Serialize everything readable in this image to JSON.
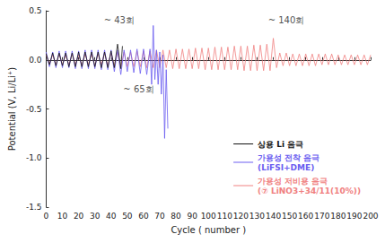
{
  "chart_data": {
    "type": "line",
    "xlabel": "Cycle ( number )",
    "ylabel": "Potential (V, Li/Li⁺)",
    "xlim": [
      0,
      200
    ],
    "xticks": [
      0,
      10,
      20,
      30,
      40,
      50,
      60,
      70,
      80,
      90,
      100,
      110,
      120,
      130,
      140,
      150,
      160,
      170,
      180,
      190,
      200
    ],
    "ylim": [
      -1.5,
      0.5
    ],
    "yticks": [
      -1.5,
      {
        "value": -1.0,
        "label": "-1.0"
      },
      -0.5,
      {
        "value": 0.0,
        "label": "0.0"
      },
      0.5
    ],
    "grid": false,
    "legend": "lower right",
    "annotations": [
      {
        "text": "~ 43회",
        "x": 45,
        "y": 0.4
      },
      {
        "text": "~ 65회",
        "x": 57,
        "y": -0.3
      },
      {
        "text": "~ 140회",
        "x": 148,
        "y": 0.4
      }
    ],
    "series": [
      {
        "name": "상용 Li 음극",
        "color": "#111111",
        "x": [
          0,
          2,
          4,
          6,
          8,
          10,
          12,
          14,
          16,
          18,
          20,
          22,
          24,
          26,
          28,
          30,
          32,
          34,
          36,
          38,
          40,
          42,
          44,
          46,
          47
        ],
        "values": [
          0.06,
          -0.05,
          0.07,
          -0.06,
          0.07,
          -0.06,
          0.07,
          -0.07,
          0.07,
          -0.07,
          0.08,
          -0.07,
          0.08,
          -0.07,
          0.08,
          -0.07,
          0.08,
          -0.08,
          0.08,
          -0.08,
          0.09,
          -0.08,
          0.16,
          -0.09,
          0.14
        ]
      },
      {
        "name": "가용성 전착 음극\n(LiFSI+DME)",
        "color": "#6a5cf0",
        "x": [
          0,
          2,
          4,
          6,
          8,
          10,
          12,
          14,
          16,
          18,
          20,
          22,
          24,
          26,
          28,
          30,
          32,
          34,
          36,
          38,
          40,
          42,
          44,
          46,
          48,
          50,
          52,
          54,
          56,
          58,
          60,
          62,
          64,
          65,
          66,
          67,
          68,
          69,
          70,
          71,
          72,
          73,
          74,
          75
        ],
        "values": [
          0.08,
          -0.07,
          0.08,
          -0.08,
          0.09,
          -0.08,
          0.09,
          -0.08,
          0.09,
          -0.09,
          0.09,
          -0.09,
          0.1,
          -0.09,
          0.1,
          -0.09,
          0.1,
          -0.1,
          0.1,
          -0.1,
          0.1,
          -0.12,
          0.1,
          -0.15,
          0.1,
          -0.12,
          0.1,
          -0.13,
          0.11,
          -0.14,
          0.11,
          -0.15,
          0.11,
          -0.25,
          0.35,
          -0.2,
          0.1,
          -0.25,
          0.08,
          -0.35,
          0.05,
          -0.8,
          -0.1,
          -0.7
        ]
      },
      {
        "name": "가용성 저비용 음극\n(⑦ LiNO3+34/11(10%))",
        "color": "#f08080",
        "x": [
          0,
          2,
          4,
          6,
          8,
          10,
          12,
          14,
          16,
          18,
          20,
          22,
          24,
          26,
          28,
          30,
          32,
          34,
          36,
          38,
          40,
          42,
          44,
          46,
          48,
          50,
          52,
          54,
          56,
          58,
          60,
          62,
          64,
          66,
          68,
          70,
          72,
          74,
          76,
          78,
          80,
          82,
          84,
          86,
          88,
          90,
          92,
          94,
          96,
          98,
          100,
          102,
          104,
          106,
          108,
          110,
          112,
          114,
          116,
          118,
          120,
          122,
          124,
          126,
          128,
          130,
          132,
          134,
          136,
          138,
          140,
          142,
          144,
          146,
          148,
          150,
          152,
          154,
          156,
          158,
          160,
          162,
          164,
          166,
          168,
          170,
          172,
          174,
          176,
          178,
          180,
          182,
          184,
          186,
          188,
          190,
          192,
          194,
          196,
          198,
          200
        ],
        "values": [
          0.05,
          -0.04,
          0.05,
          -0.05,
          0.06,
          -0.05,
          0.05,
          -0.05,
          0.06,
          -0.05,
          0.05,
          -0.06,
          0.06,
          -0.05,
          0.06,
          -0.06,
          0.06,
          -0.05,
          0.07,
          -0.06,
          0.07,
          -0.06,
          0.08,
          -0.07,
          0.08,
          -0.07,
          0.08,
          -0.07,
          0.09,
          -0.07,
          0.09,
          -0.08,
          0.09,
          -0.08,
          0.1,
          -0.08,
          0.1,
          -0.08,
          0.1,
          -0.09,
          0.11,
          -0.09,
          0.11,
          -0.09,
          0.11,
          -0.09,
          0.12,
          -0.09,
          0.12,
          -0.1,
          0.12,
          -0.1,
          0.13,
          -0.1,
          0.13,
          -0.1,
          0.13,
          -0.1,
          0.14,
          -0.1,
          0.14,
          -0.11,
          0.14,
          -0.11,
          0.15,
          -0.11,
          0.15,
          -0.11,
          0.16,
          -0.11,
          0.22,
          -0.08,
          0.07,
          -0.06,
          0.07,
          -0.06,
          0.06,
          -0.06,
          0.06,
          -0.06,
          0.06,
          -0.06,
          0.06,
          -0.06,
          0.06,
          -0.05,
          0.06,
          -0.05,
          0.06,
          -0.05,
          0.05,
          -0.05,
          0.05,
          -0.05,
          0.05,
          -0.05,
          0.05,
          -0.05,
          0.05,
          -0.05,
          0.05
        ]
      }
    ]
  }
}
